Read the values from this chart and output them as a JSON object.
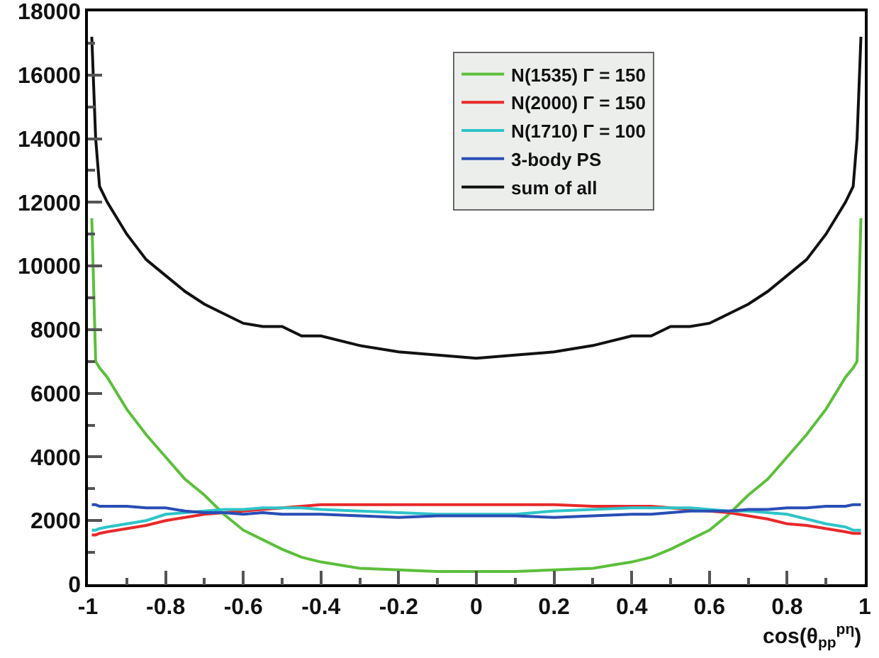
{
  "chart_data": {
    "type": "line",
    "xlabel": "cos(θ$_{pp}$$^{pη}$)",
    "x": [
      -0.99,
      -0.98,
      -0.97,
      -0.95,
      -0.9,
      -0.85,
      -0.8,
      -0.75,
      -0.7,
      -0.65,
      -0.6,
      -0.55,
      -0.5,
      -0.45,
      -0.4,
      -0.3,
      -0.2,
      -0.1,
      0,
      0.1,
      0.2,
      0.3,
      0.4,
      0.45,
      0.5,
      0.55,
      0.6,
      0.65,
      0.7,
      0.75,
      0.8,
      0.85,
      0.9,
      0.95,
      0.97,
      0.98,
      0.99
    ],
    "series": [
      {
        "name": "N(1535) Γ = 150",
        "color": "#5cbf3a",
        "values": [
          11500,
          7000,
          6800,
          6500,
          5500,
          4700,
          4000,
          3300,
          2800,
          2200,
          1700,
          1400,
          1100,
          850,
          700,
          500,
          450,
          400,
          400,
          400,
          450,
          500,
          700,
          850,
          1100,
          1400,
          1700,
          2200,
          2800,
          3300,
          4000,
          4700,
          5500,
          6500,
          6800,
          7000,
          11500
        ]
      },
      {
        "name": "N(2000) Γ = 150",
        "color": "#e8292a",
        "values": [
          1550,
          1550,
          1600,
          1650,
          1750,
          1850,
          2000,
          2100,
          2200,
          2250,
          2300,
          2350,
          2400,
          2450,
          2500,
          2500,
          2500,
          2500,
          2500,
          2500,
          2500,
          2450,
          2450,
          2450,
          2400,
          2350,
          2300,
          2250,
          2150,
          2050,
          1900,
          1850,
          1750,
          1650,
          1600,
          1600,
          1600
        ]
      },
      {
        "name": "N(1710) Γ = 100",
        "color": "#2ec4c8",
        "values": [
          1700,
          1700,
          1750,
          1800,
          1900,
          2000,
          2200,
          2250,
          2300,
          2350,
          2350,
          2400,
          2400,
          2400,
          2350,
          2300,
          2250,
          2200,
          2200,
          2200,
          2300,
          2350,
          2400,
          2400,
          2400,
          2400,
          2350,
          2300,
          2300,
          2250,
          2200,
          2050,
          1900,
          1800,
          1700,
          1700,
          1700
        ]
      },
      {
        "name": "3-body PS",
        "color": "#2a4db5",
        "values": [
          2500,
          2500,
          2450,
          2450,
          2450,
          2400,
          2400,
          2300,
          2250,
          2250,
          2200,
          2250,
          2200,
          2200,
          2200,
          2150,
          2100,
          2150,
          2150,
          2150,
          2100,
          2150,
          2200,
          2200,
          2250,
          2300,
          2300,
          2300,
          2350,
          2350,
          2400,
          2400,
          2450,
          2450,
          2500,
          2500,
          2500
        ]
      },
      {
        "name": "sum of all",
        "color": "#111111",
        "values": [
          17200,
          14000,
          12500,
          12000,
          11000,
          10200,
          9700,
          9200,
          8800,
          8500,
          8200,
          8100,
          8100,
          7800,
          7800,
          7500,
          7300,
          7200,
          7100,
          7200,
          7300,
          7500,
          7800,
          7800,
          8100,
          8100,
          8200,
          8500,
          8800,
          9200,
          9700,
          10200,
          11000,
          12000,
          12500,
          14000,
          17200
        ]
      }
    ],
    "xlim": [
      -1,
      1
    ],
    "xticks": [
      -1,
      -0.8,
      -0.6,
      -0.4,
      -0.2,
      0,
      0.2,
      0.4,
      0.6,
      0.8,
      1
    ],
    "ylim": [
      0,
      18000
    ],
    "yticks": [
      0,
      2000,
      4000,
      6000,
      8000,
      10000,
      12000,
      14000,
      16000,
      18000
    ],
    "grid": false,
    "legend": "top right",
    "line_style": "solid",
    "marker": "none"
  }
}
